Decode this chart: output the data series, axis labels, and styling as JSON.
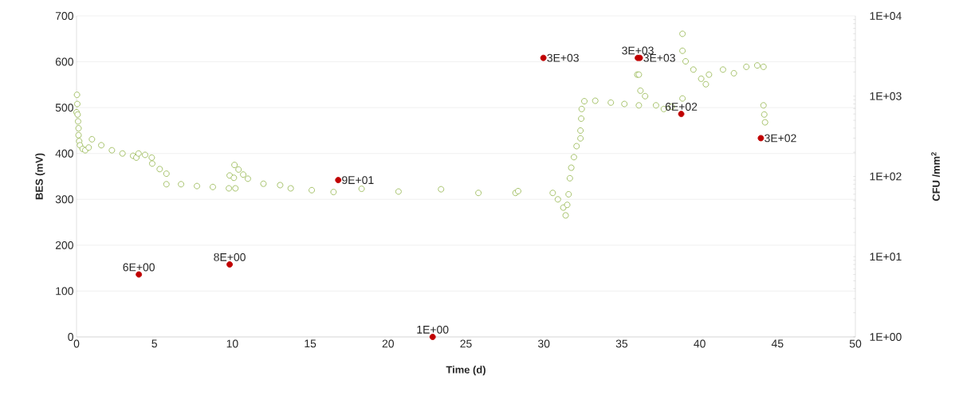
{
  "chart_data": {
    "type": "scatter",
    "xlabel": "Time (d)",
    "ylabel": "BES (mV)",
    "y2label": "CFU /mm$^{2}$",
    "xlim": [
      0,
      50
    ],
    "xticks": [
      0,
      5,
      10,
      15,
      20,
      25,
      30,
      35,
      40,
      45,
      50
    ],
    "ylim": [
      0,
      700
    ],
    "yticks": [
      0,
      100,
      200,
      300,
      400,
      500,
      600,
      700
    ],
    "y2lim": [
      1,
      10000
    ],
    "y2ticks": [
      {
        "value": 1,
        "label": "1E+00"
      },
      {
        "value": 10,
        "label": "1E+01"
      },
      {
        "value": 100,
        "label": "1E+02"
      },
      {
        "value": 1000,
        "label": "1E+03"
      },
      {
        "value": 10000,
        "label": "1E+04"
      }
    ],
    "log": "y2",
    "grid": "y",
    "marker": "circle",
    "series": [
      {
        "color": "#9bbb59",
        "x": [
          0.03,
          0.05,
          0.0,
          0.07,
          0.1,
          0.13,
          0.13,
          0.17,
          0.22,
          0.39,
          0.56,
          0.78,
          0.99,
          1.59,
          2.27,
          2.95,
          3.63,
          3.84,
          3.98,
          4.4,
          4.83,
          4.86,
          5.34,
          5.77,
          5.77,
          6.71,
          7.73,
          8.75,
          9.78,
          9.83,
          10.1,
          10.2,
          10.14,
          10.4,
          10.7,
          11.0,
          12.0,
          13.07,
          13.75,
          15.1,
          16.5,
          18.3,
          20.67,
          23.4,
          25.8,
          28.18,
          28.35,
          30.57,
          30.9,
          31.25,
          31.4,
          31.5,
          31.59,
          31.67,
          31.76,
          31.93,
          32.1,
          32.35,
          32.35,
          32.4,
          32.43,
          32.6,
          33.3,
          34.3,
          35.17,
          36.1,
          36.0,
          36.1,
          36.2,
          36.5,
          37.2,
          37.7,
          38.2,
          38.9,
          38.9,
          38.9,
          39.1,
          39.6,
          40.1,
          40.4,
          40.6,
          41.5,
          42.2,
          43.0,
          43.7,
          44.1,
          44.1,
          44.15,
          44.2
        ],
        "values": [
          528,
          508,
          490,
          485,
          470,
          455,
          440,
          427,
          418,
          410,
          407,
          413,
          431,
          418,
          407,
          400,
          395,
          391,
          400,
          397,
          391,
          378,
          366,
          356,
          333,
          333,
          329,
          327,
          324,
          352,
          347,
          324,
          375,
          365,
          354,
          345,
          334,
          331,
          324,
          320,
          316,
          323,
          317,
          322,
          314,
          314,
          318,
          314,
          300,
          282,
          265,
          288,
          311,
          346,
          369,
          392,
          416,
          433,
          450,
          476,
          497,
          514,
          515,
          511,
          508,
          505,
          572,
          572,
          537,
          525,
          505,
          497,
          502,
          520,
          661,
          624,
          601,
          583,
          563,
          551,
          572,
          583,
          575,
          589,
          592,
          589,
          505,
          485,
          468
        ]
      },
      {
        "color": "#c00000",
        "axis": "y2",
        "x": [
          4.0,
          9.83,
          22.86,
          16.8,
          29.97,
          36.03,
          36.16,
          38.82,
          43.93
        ],
        "values": [
          6,
          8,
          1,
          90,
          3000,
          3000,
          3000,
          600,
          300
        ],
        "value_labels": [
          "6E+00",
          "8E+00",
          "1E+00",
          "9E+01",
          "3E+03",
          "3E+03",
          "3E+03",
          "6E+02",
          "3E+02"
        ]
      }
    ]
  }
}
